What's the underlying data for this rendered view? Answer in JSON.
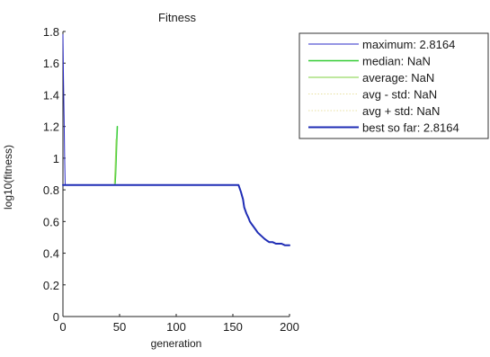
{
  "chart_data": {
    "type": "line",
    "title": "Fitness",
    "xlabel": "generation",
    "ylabel": "log10(fitness)",
    "xlim": [
      0,
      200
    ],
    "ylim": [
      0,
      1.8
    ],
    "x_ticks": [
      0,
      50,
      100,
      150,
      200
    ],
    "y_ticks": [
      0,
      0.2,
      0.4,
      0.6,
      0.8,
      1,
      1.2,
      1.4,
      1.6,
      1.8
    ],
    "x_tick_labels": [
      "0",
      "50",
      "100",
      "150",
      "200"
    ],
    "y_tick_labels": [
      "0",
      "0.2",
      "0.4",
      "0.6",
      "0.8",
      "1",
      "1.2",
      "1.4",
      "1.6",
      "1.8"
    ],
    "grid": false,
    "legend_position": "outside-top-right",
    "series": [
      {
        "name": "maximum: 2.8164",
        "color": "#2b2bc8",
        "style": "solid",
        "x": [
          0,
          0.5,
          1,
          1.5,
          2
        ],
        "y": [
          1.78,
          1.5,
          1.25,
          1.0,
          0.83
        ]
      },
      {
        "name": "median: NaN",
        "color": "#33cc33",
        "style": "solid",
        "x": [
          46,
          46.5,
          47,
          47.5,
          48
        ],
        "y": [
          0.84,
          0.9,
          1.0,
          1.1,
          1.2
        ]
      },
      {
        "name": "average: NaN",
        "color": "#99d966",
        "style": "solid",
        "x": [
          45.5,
          46,
          46.5,
          47
        ],
        "y": [
          0.84,
          0.92,
          1.02,
          1.12
        ]
      },
      {
        "name": "avg - std: NaN",
        "color": "#e8e0a0",
        "style": "dotted",
        "x": [],
        "y": []
      },
      {
        "name": "avg + std: NaN",
        "color": "#e8e0a0",
        "style": "dotted",
        "x": [],
        "y": []
      },
      {
        "name": "best so far: 2.8164",
        "color": "#1f2db5",
        "style": "solid",
        "x": [
          0,
          2,
          10,
          50,
          100,
          150,
          155,
          157,
          159,
          160,
          162,
          164,
          165,
          167,
          170,
          172,
          175,
          178,
          180,
          182,
          185,
          188,
          190,
          193,
          196,
          200
        ],
        "y": [
          0.83,
          0.83,
          0.83,
          0.83,
          0.83,
          0.83,
          0.83,
          0.79,
          0.74,
          0.69,
          0.65,
          0.62,
          0.6,
          0.58,
          0.55,
          0.53,
          0.51,
          0.49,
          0.48,
          0.47,
          0.47,
          0.46,
          0.46,
          0.46,
          0.45,
          0.45
        ]
      }
    ]
  }
}
